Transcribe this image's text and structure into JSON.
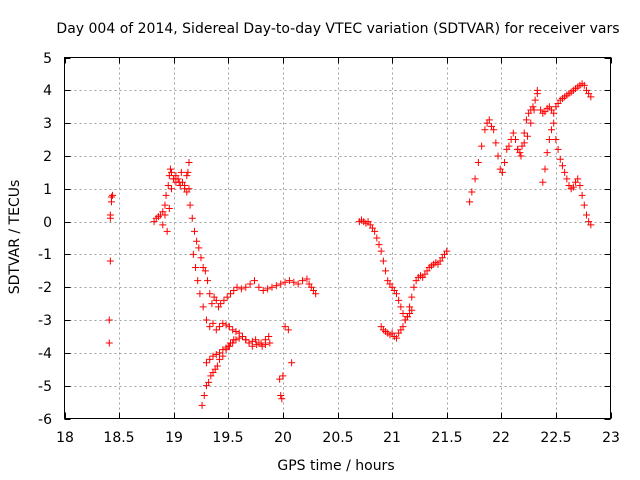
{
  "chart_data": {
    "type": "scatter",
    "title": "Day 004 of 2014, Sidereal Day-to-day VTEC variation (SDTVAR) for receiver vars",
    "xlabel": "GPS time / hours",
    "ylabel": "SDTVAR / TECUs",
    "xlim": [
      18,
      23
    ],
    "ylim": [
      -6,
      5
    ],
    "x_ticks": [
      18,
      18.5,
      19,
      19.5,
      20,
      20.5,
      21,
      21.5,
      22,
      22.5,
      23
    ],
    "x_tick_labels": [
      "18",
      "18.5",
      "19",
      "19.5",
      "20",
      "20.5",
      "21",
      "21.5",
      "22",
      "22.5",
      "23"
    ],
    "y_ticks": [
      -6,
      -5,
      -4,
      -3,
      -2,
      -1,
      0,
      1,
      2,
      3,
      4,
      5
    ],
    "y_tick_labels": [
      "-6",
      "-5",
      "-4",
      "-3",
      "-2",
      "-1",
      "0",
      "1",
      "2",
      "3",
      "4",
      "5"
    ],
    "grid": true,
    "marker": "+",
    "color": "#ff0000",
    "series": [
      {
        "name": "receiver vars",
        "x": [
          18.41,
          18.41,
          18.42,
          18.42,
          18.42,
          18.43,
          18.43,
          18.44,
          18.82,
          18.84,
          18.86,
          18.88,
          18.9,
          18.92,
          18.93,
          18.95,
          18.96,
          18.97,
          18.98,
          19.0,
          19.02,
          19.04,
          19.06,
          19.08,
          19.1,
          19.12,
          19.13,
          19.14,
          18.9,
          18.92,
          18.94,
          18.96,
          18.98,
          19.0,
          19.02,
          19.05,
          19.07,
          19.1,
          19.12,
          19.14,
          19.15,
          19.17,
          19.19,
          19.21,
          19.23,
          19.25,
          19.27,
          19.29,
          19.31,
          19.33,
          19.35,
          19.37,
          19.39,
          19.41,
          19.43,
          19.46,
          19.49,
          19.52,
          19.55,
          19.58,
          19.62,
          19.66,
          19.7,
          19.74,
          19.78,
          19.82,
          19.86,
          19.9,
          19.94,
          19.98,
          20.02,
          20.06,
          20.1,
          20.14,
          20.18,
          20.22,
          20.24,
          20.26,
          20.28,
          20.3,
          19.18,
          19.2,
          19.22,
          19.24,
          19.27,
          19.3,
          19.33,
          19.36,
          19.39,
          19.42,
          19.45,
          19.48,
          19.51,
          19.54,
          19.57,
          19.6,
          19.63,
          19.66,
          19.69,
          19.72,
          19.76,
          19.8,
          19.84,
          19.87,
          19.26,
          19.28,
          19.3,
          19.32,
          19.34,
          19.36,
          19.38,
          19.4,
          19.42,
          19.45,
          19.48,
          19.51,
          19.54,
          19.57,
          19.6,
          19.63,
          19.66,
          19.69,
          19.72,
          19.75,
          19.78,
          19.81,
          19.84,
          19.88,
          19.3,
          19.33,
          19.36,
          19.39,
          19.42,
          19.45,
          19.48,
          19.5,
          19.52,
          19.55,
          19.97,
          19.98,
          19.99,
          20.0,
          20.02,
          20.05,
          20.08,
          20.7,
          20.72,
          20.74,
          20.76,
          20.78,
          20.8,
          20.82,
          20.84,
          20.86,
          20.88,
          20.9,
          20.92,
          20.94,
          20.96,
          20.98,
          21.0,
          21.02,
          21.04,
          21.06,
          21.08,
          21.1,
          21.12,
          21.14,
          21.16,
          21.18,
          21.2,
          21.22,
          21.24,
          21.26,
          21.28,
          21.3,
          21.32,
          21.34,
          21.36,
          21.38,
          21.4,
          21.42,
          21.44,
          21.46,
          21.48,
          21.5,
          20.9,
          20.92,
          20.94,
          20.96,
          20.98,
          21.0,
          21.02,
          21.04,
          21.06,
          21.08,
          21.1,
          21.12,
          21.14,
          21.16,
          21.18,
          21.71,
          21.73,
          21.76,
          21.79,
          21.82,
          21.85,
          21.87,
          21.89,
          21.91,
          21.93,
          21.95,
          21.97,
          21.99,
          22.01,
          22.03,
          22.05,
          22.07,
          22.09,
          22.11,
          22.13,
          22.15,
          22.17,
          22.19,
          22.21,
          22.23,
          22.25,
          22.27,
          22.29,
          22.31,
          22.33,
          22.15,
          22.18,
          22.21,
          22.24,
          22.27,
          22.3,
          22.33,
          22.36,
          22.38,
          22.4,
          22.42,
          22.44,
          22.46,
          22.48,
          22.5,
          22.52,
          22.54,
          22.56,
          22.58,
          22.6,
          22.62,
          22.64,
          22.66,
          22.68,
          22.7,
          22.72,
          22.74,
          22.76,
          22.78,
          22.8,
          22.82,
          22.38,
          22.4,
          22.42,
          22.44,
          22.46,
          22.48,
          22.5,
          22.52,
          22.54,
          22.56,
          22.58,
          22.6,
          22.62,
          22.64,
          22.66,
          22.68,
          22.7,
          22.72,
          22.74,
          22.76,
          22.78,
          22.8,
          22.82
        ],
        "y": [
          -3.7,
          -3.0,
          -1.2,
          0.1,
          0.2,
          0.6,
          0.75,
          0.8,
          0.0,
          0.1,
          0.15,
          0.2,
          0.3,
          0.5,
          0.8,
          1.1,
          1.4,
          1.6,
          1.5,
          1.3,
          1.2,
          1.3,
          1.1,
          1.2,
          1.0,
          0.9,
          1.5,
          1.8,
          -0.1,
          0.2,
          -0.3,
          0.4,
          1.0,
          1.3,
          1.4,
          1.2,
          1.5,
          1.1,
          1.4,
          1.0,
          0.5,
          0.1,
          -0.3,
          -0.6,
          -0.8,
          -1.1,
          -1.4,
          -1.5,
          -1.8,
          -2.2,
          -2.5,
          -2.3,
          -2.4,
          -2.6,
          -2.5,
          -2.4,
          -2.3,
          -2.2,
          -2.1,
          -2.0,
          -2.05,
          -2.0,
          -1.9,
          -1.8,
          -2.0,
          -2.1,
          -2.05,
          -2.0,
          -1.95,
          -1.9,
          -1.85,
          -1.8,
          -1.85,
          -1.9,
          -1.8,
          -1.75,
          -1.9,
          -2.0,
          -2.1,
          -2.2,
          -1.0,
          -1.4,
          -1.8,
          -2.2,
          -2.6,
          -3.0,
          -3.2,
          -3.1,
          -3.3,
          -3.2,
          -3.1,
          -3.15,
          -3.2,
          -3.3,
          -3.35,
          -3.4,
          -3.5,
          -3.6,
          -3.7,
          -3.8,
          -3.75,
          -3.7,
          -3.6,
          -3.5,
          -5.6,
          -5.3,
          -5.0,
          -4.9,
          -4.7,
          -4.6,
          -4.5,
          -4.4,
          -4.2,
          -4.1,
          -3.9,
          -3.8,
          -3.7,
          -3.6,
          -3.55,
          -3.5,
          -3.6,
          -3.7,
          -3.65,
          -3.6,
          -3.7,
          -3.8,
          -3.75,
          -3.7,
          -4.3,
          -4.2,
          -4.1,
          -4.05,
          -4.0,
          -3.9,
          -3.85,
          -3.8,
          -3.7,
          -3.6,
          -4.8,
          -5.3,
          -5.4,
          -4.7,
          -3.2,
          -3.3,
          -4.3,
          0.0,
          0.05,
          0.0,
          -0.05,
          0.0,
          -0.1,
          -0.2,
          -0.3,
          -0.5,
          -0.7,
          -0.9,
          -1.2,
          -1.5,
          -1.8,
          -1.9,
          -2.0,
          -2.1,
          -2.2,
          -2.4,
          -2.6,
          -2.8,
          -3.0,
          -2.9,
          -2.6,
          -2.3,
          -2.0,
          -1.8,
          -1.7,
          -1.65,
          -1.7,
          -1.6,
          -1.5,
          -1.4,
          -1.35,
          -1.3,
          -1.25,
          -1.3,
          -1.2,
          -1.1,
          -1.0,
          -0.9,
          -3.2,
          -3.3,
          -3.35,
          -3.4,
          -3.45,
          -3.4,
          -3.5,
          -3.55,
          -3.4,
          -3.3,
          -3.2,
          -3.0,
          -2.9,
          -2.8,
          -2.7,
          0.6,
          0.9,
          1.3,
          1.8,
          2.3,
          2.8,
          3.0,
          3.1,
          2.9,
          2.8,
          2.4,
          2.0,
          1.6,
          1.5,
          1.8,
          2.2,
          2.3,
          2.5,
          2.7,
          2.5,
          2.2,
          2.1,
          2.3,
          2.7,
          3.1,
          3.3,
          3.4,
          3.5,
          3.7,
          3.9,
          2.2,
          2.0,
          2.4,
          2.6,
          3.0,
          3.4,
          4.0,
          3.4,
          3.3,
          3.35,
          3.45,
          3.5,
          3.4,
          3.3,
          3.5,
          3.6,
          3.7,
          3.75,
          3.8,
          3.85,
          3.9,
          3.95,
          4.0,
          4.05,
          4.1,
          4.15,
          4.2,
          4.15,
          4.0,
          3.9,
          3.8,
          1.2,
          1.6,
          2.1,
          2.5,
          2.8,
          3.0,
          2.5,
          2.2,
          1.9,
          1.7,
          1.5,
          1.3,
          1.1,
          1.0,
          1.05,
          1.2,
          1.3,
          1.1,
          0.8,
          0.5,
          0.2,
          0.0,
          -0.1
        ]
      }
    ]
  }
}
